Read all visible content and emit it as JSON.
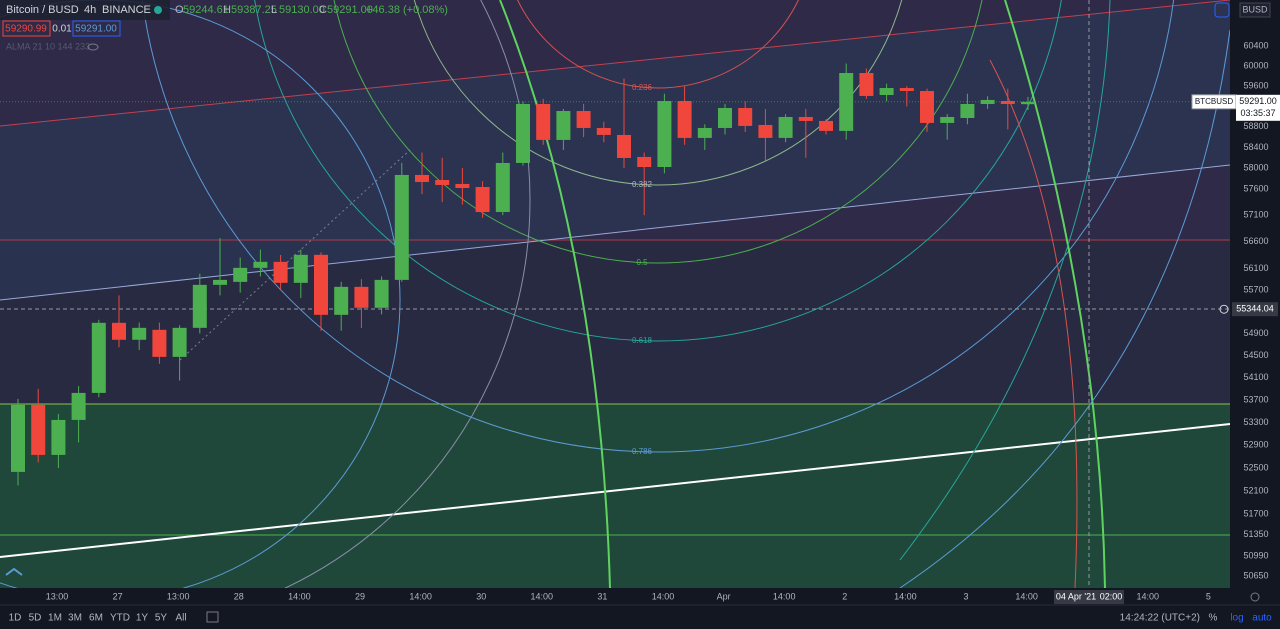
{
  "header": {
    "symbol": "Bitcoin / BUSD",
    "interval": "4h",
    "exchange": "BINANCE",
    "ohlc": [
      {
        "label": "O",
        "value": "59244.61"
      },
      {
        "label": "H",
        "value": "59387.25"
      },
      {
        "label": "L",
        "value": "59130.00"
      },
      {
        "label": "C",
        "value": "59291.00"
      }
    ],
    "change": "+46.38 (+0.08%)",
    "bid": "59290.99",
    "spread": "0.01",
    "ask": "59291.00",
    "indicator": "ALMA 21 10 144 233"
  },
  "chart_data": {
    "type": "candlestick",
    "log": true,
    "grid": false,
    "up_color": "#4caf50",
    "down_color": "#f0463c",
    "open": [
      52433,
      53613,
      52730,
      53346,
      53827,
      55095,
      54785,
      54967,
      54475,
      55003,
      55794,
      55849,
      56110,
      56222,
      55831,
      56353,
      55241,
      55757,
      55370,
      55886,
      57868,
      57771,
      57695,
      57637,
      57160,
      58099,
      59248,
      58545,
      59110,
      58778,
      58642,
      58215,
      58021,
      59307,
      58584,
      58778,
      59169,
      58837,
      58584,
      58993,
      58915,
      58720,
      59861,
      59425,
      59563,
      59504,
      58876,
      58973,
      59248,
      59307,
      59244.61
    ],
    "high": [
      53720,
      53900,
      53450,
      53950,
      55150,
      55600,
      55100,
      55100,
      55050,
      56000,
      56670,
      56300,
      56450,
      56350,
      56450,
      56400,
      55850,
      55900,
      55950,
      58100,
      58300,
      58200,
      58000,
      57750,
      58300,
      59300,
      59350,
      59150,
      59250,
      58900,
      59750,
      58300,
      59450,
      59600,
      58850,
      59250,
      59300,
      59150,
      59050,
      59150,
      58950,
      60050,
      59950,
      59650,
      59600,
      59550,
      59050,
      59450,
      59400,
      59550,
      59387.25
    ],
    "low": [
      52200,
      52600,
      52500,
      52950,
      53750,
      54650,
      54600,
      54350,
      54050,
      54900,
      55600,
      55650,
      55950,
      55700,
      55550,
      54950,
      54950,
      55000,
      55250,
      55850,
      57500,
      57350,
      57300,
      57050,
      57100,
      58050,
      58450,
      58350,
      58600,
      58500,
      58000,
      57100,
      57900,
      58450,
      58350,
      58650,
      58700,
      58150,
      58500,
      58200,
      58650,
      58550,
      59350,
      59300,
      59200,
      58700,
      58550,
      58850,
      59150,
      58750,
      59130
    ],
    "close": [
      53613,
      52730,
      53346,
      53827,
      55095,
      54785,
      55003,
      54475,
      55003,
      55794,
      55886,
      56110,
      56222,
      55831,
      56353,
      55241,
      55757,
      55370,
      55886,
      57868,
      57733,
      57676,
      57618,
      57160,
      58099,
      59248,
      58545,
      59110,
      58778,
      58642,
      58195,
      58021,
      59307,
      58584,
      58778,
      59169,
      58818,
      58584,
      58993,
      58915,
      58720,
      59861,
      59406,
      59563,
      59504,
      58876,
      58993,
      59248,
      59327,
      59248,
      59291
    ],
    "ylim": [
      50450,
      61330
    ],
    "yticks": [
      60400,
      60000,
      59600,
      58800,
      58400,
      58000,
      57600,
      57100,
      56600,
      56100,
      55700,
      54900,
      54500,
      54100,
      53700,
      53300,
      52900,
      52500,
      52100,
      51700,
      51350,
      50990,
      50650
    ],
    "x_labels": [
      "13:00",
      "27",
      "13:00",
      "28",
      "14:00",
      "29",
      "14:00",
      "30",
      "14:00",
      "31",
      "14:00",
      "Apr",
      "14:00",
      "2",
      "14:00",
      "3",
      "14:00",
      null,
      "14:00",
      "5"
    ],
    "currency": "BUSD",
    "last_price": {
      "value": 59291,
      "label": "59291.00"
    },
    "ticker": "BTCBUSD",
    "countdown": "03:35:37",
    "crosshair_price": {
      "value": 55344.04,
      "label": "55344.04"
    },
    "crosshair_date": "04 Apr '21",
    "crosshair_time": "02:00",
    "fib_levels": [
      "0.236",
      "0.382",
      "0.5",
      "0.618",
      "0.786"
    ]
  },
  "toolbar": {
    "ranges": [
      "1D",
      "5D",
      "1M",
      "3M",
      "6M",
      "YTD",
      "1Y",
      "5Y",
      "All"
    ],
    "clock": "14:24:22 (UTC+2)",
    "percent": "%",
    "log": "log",
    "auto": "auto"
  }
}
